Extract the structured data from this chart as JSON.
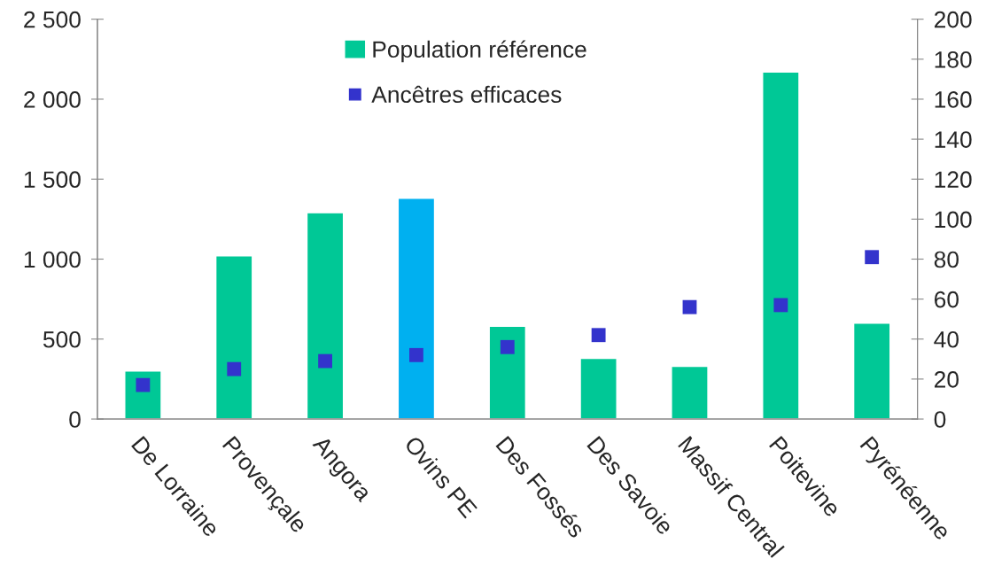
{
  "chart_data": {
    "type": "bar",
    "categories": [
      "De Lorraine",
      "Provençale",
      "Angora",
      "Ovins PE",
      "Des Fossés",
      "Des Savoie",
      "Massif Central",
      "Poitevine",
      "Pyrénéenne"
    ],
    "series": [
      {
        "name": "Population référence",
        "color": "#00c896",
        "colors": [
          "#00c896",
          "#00c896",
          "#00c896",
          "#00b0f0",
          "#00c896",
          "#00c896",
          "#00c896",
          "#00c896",
          "#00c896"
        ],
        "values": [
          300,
          1020,
          1290,
          1380,
          580,
          380,
          330,
          2170,
          600
        ]
      },
      {
        "name": "Ancêtres efficaces",
        "type": "scatter",
        "axis": "y2",
        "color": "#3333cc",
        "marker": "square",
        "values": [
          17,
          25,
          29,
          32,
          36,
          42,
          56,
          57,
          81
        ]
      }
    ],
    "ylim": [
      0,
      2500
    ],
    "yticks": [
      {
        "value": 0,
        "label": "0"
      },
      {
        "value": 500,
        "label": "500"
      },
      {
        "value": 1000,
        "label": "1 000"
      },
      {
        "value": 1500,
        "label": "1 500"
      },
      {
        "value": 2000,
        "label": "2 000"
      },
      {
        "value": 2500,
        "label": "2 500"
      }
    ],
    "y2lim": [
      0,
      200
    ],
    "y2ticks": [
      0,
      20,
      40,
      60,
      80,
      100,
      120,
      140,
      160,
      180,
      200
    ],
    "grid": false,
    "legend": "top"
  }
}
